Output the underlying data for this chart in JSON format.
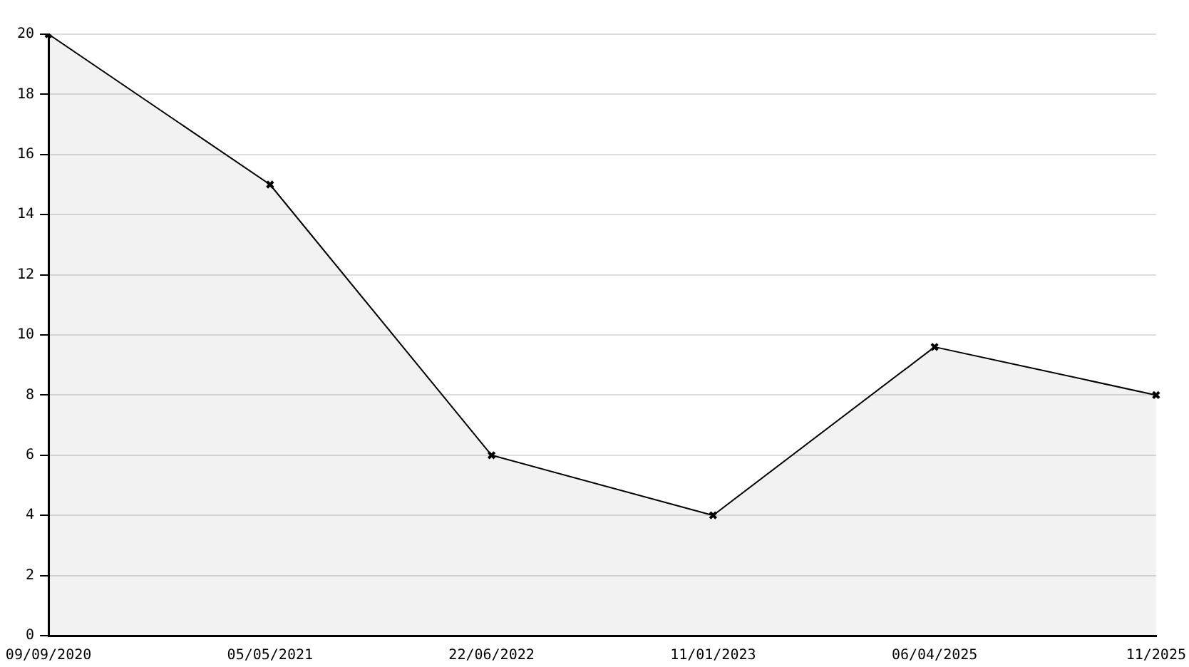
{
  "chart_data": {
    "type": "area",
    "categories": [
      "09/09/2020",
      "05/05/2021",
      "22/06/2022",
      "11/01/2023",
      "06/04/2025",
      "11/2025"
    ],
    "series": [
      {
        "color": "#000000",
        "values": [
          20,
          15,
          6,
          4,
          9.6,
          8
        ]
      }
    ],
    "ylim": [
      0,
      20
    ],
    "yticks": [
      0,
      2,
      4,
      6,
      8,
      10,
      12,
      14,
      16,
      18,
      20
    ],
    "grid": "y",
    "marker": "cross",
    "line_style": "solid"
  }
}
